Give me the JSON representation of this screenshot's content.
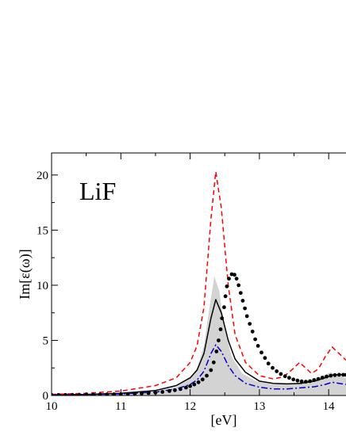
{
  "chart_data": {
    "type": "line",
    "annotation": "LiF",
    "xlabel": "[eV]",
    "ylabel": "Im[ε(ω)]",
    "xlim": [
      10,
      14.25
    ],
    "ylim": [
      0,
      22
    ],
    "xticks": [
      10,
      11,
      12,
      13,
      14
    ],
    "yticks": [
      0,
      5,
      10,
      15,
      20
    ],
    "grid": false,
    "legend": "none",
    "series": [
      {
        "style": "shaded-area",
        "color": "#d3d3d3",
        "points": [
          [
            10.0,
            0.05
          ],
          [
            10.5,
            0.1
          ],
          [
            11.0,
            0.2
          ],
          [
            11.5,
            0.4
          ],
          [
            11.8,
            0.8
          ],
          [
            12.0,
            1.6
          ],
          [
            12.1,
            2.5
          ],
          [
            12.2,
            4.5
          ],
          [
            12.28,
            8.0
          ],
          [
            12.35,
            10.8
          ],
          [
            12.42,
            9.5
          ],
          [
            12.5,
            6.0
          ],
          [
            12.6,
            3.5
          ],
          [
            12.75,
            2.0
          ],
          [
            12.95,
            1.3
          ],
          [
            13.2,
            1.0
          ],
          [
            13.5,
            1.1
          ],
          [
            13.7,
            1.3
          ],
          [
            13.85,
            1.6
          ],
          [
            13.95,
            1.9
          ],
          [
            14.03,
            2.1
          ],
          [
            14.1,
            1.9
          ],
          [
            14.2,
            1.7
          ],
          [
            14.25,
            1.6
          ]
        ]
      },
      {
        "style": "solid",
        "color": "#000000",
        "points": [
          [
            10.0,
            0.05
          ],
          [
            10.5,
            0.1
          ],
          [
            11.0,
            0.2
          ],
          [
            11.5,
            0.45
          ],
          [
            11.8,
            0.9
          ],
          [
            12.0,
            1.6
          ],
          [
            12.1,
            2.3
          ],
          [
            12.2,
            3.8
          ],
          [
            12.3,
            7.0
          ],
          [
            12.37,
            8.7
          ],
          [
            12.45,
            7.5
          ],
          [
            12.55,
            5.0
          ],
          [
            12.65,
            3.3
          ],
          [
            12.8,
            2.1
          ],
          [
            13.0,
            1.3
          ],
          [
            13.2,
            1.1
          ],
          [
            13.4,
            1.05
          ],
          [
            13.6,
            1.1
          ],
          [
            13.8,
            1.3
          ],
          [
            13.95,
            1.6
          ],
          [
            14.05,
            1.85
          ],
          [
            14.15,
            1.9
          ],
          [
            14.25,
            1.9
          ]
        ]
      },
      {
        "style": "dashed",
        "color": "#ff0000",
        "points": [
          [
            10.0,
            0.1
          ],
          [
            10.5,
            0.2
          ],
          [
            11.0,
            0.4
          ],
          [
            11.5,
            0.9
          ],
          [
            11.8,
            1.6
          ],
          [
            12.0,
            3.0
          ],
          [
            12.1,
            4.5
          ],
          [
            12.2,
            8.0
          ],
          [
            12.3,
            16.0
          ],
          [
            12.37,
            20.3
          ],
          [
            12.45,
            17.0
          ],
          [
            12.55,
            10.0
          ],
          [
            12.65,
            5.5
          ],
          [
            12.8,
            3.0
          ],
          [
            13.0,
            1.8
          ],
          [
            13.2,
            1.5
          ],
          [
            13.35,
            1.7
          ],
          [
            13.5,
            2.5
          ],
          [
            13.58,
            3.0
          ],
          [
            13.65,
            2.6
          ],
          [
            13.75,
            2.0
          ],
          [
            13.85,
            2.4
          ],
          [
            13.95,
            3.5
          ],
          [
            14.05,
            4.4
          ],
          [
            14.15,
            3.8
          ],
          [
            14.25,
            3.2
          ]
        ]
      },
      {
        "style": "dash-dot",
        "color": "#0000cc",
        "points": [
          [
            10.0,
            0.05
          ],
          [
            10.5,
            0.08
          ],
          [
            11.0,
            0.15
          ],
          [
            11.5,
            0.3
          ],
          [
            11.8,
            0.6
          ],
          [
            12.0,
            1.0
          ],
          [
            12.1,
            1.4
          ],
          [
            12.2,
            2.2
          ],
          [
            12.3,
            3.8
          ],
          [
            12.37,
            4.6
          ],
          [
            12.45,
            4.0
          ],
          [
            12.55,
            2.7
          ],
          [
            12.65,
            1.8
          ],
          [
            12.8,
            1.1
          ],
          [
            13.0,
            0.75
          ],
          [
            13.2,
            0.6
          ],
          [
            13.4,
            0.6
          ],
          [
            13.6,
            0.7
          ],
          [
            13.8,
            0.8
          ],
          [
            13.95,
            1.0
          ],
          [
            14.05,
            1.2
          ],
          [
            14.15,
            1.1
          ],
          [
            14.25,
            1.0
          ]
        ]
      },
      {
        "style": "dots",
        "color": "#000000",
        "points": [
          [
            10.0,
            0.05
          ],
          [
            10.1,
            0.05
          ],
          [
            10.2,
            0.05
          ],
          [
            10.3,
            0.06
          ],
          [
            10.4,
            0.06
          ],
          [
            10.5,
            0.07
          ],
          [
            10.6,
            0.08
          ],
          [
            10.7,
            0.09
          ],
          [
            10.8,
            0.1
          ],
          [
            10.9,
            0.11
          ],
          [
            11.0,
            0.12
          ],
          [
            11.1,
            0.14
          ],
          [
            11.2,
            0.16
          ],
          [
            11.3,
            0.19
          ],
          [
            11.4,
            0.22
          ],
          [
            11.5,
            0.26
          ],
          [
            11.6,
            0.32
          ],
          [
            11.7,
            0.4
          ],
          [
            11.78,
            0.48
          ],
          [
            11.86,
            0.58
          ],
          [
            11.94,
            0.72
          ],
          [
            12.0,
            0.85
          ],
          [
            12.06,
            1.0
          ],
          [
            12.12,
            1.2
          ],
          [
            12.18,
            1.45
          ],
          [
            12.24,
            1.8
          ],
          [
            12.3,
            2.3
          ],
          [
            12.34,
            3.0
          ],
          [
            12.38,
            4.0
          ],
          [
            12.41,
            5.0
          ],
          [
            12.44,
            6.0
          ],
          [
            12.46,
            7.0
          ],
          [
            12.49,
            8.0
          ],
          [
            12.51,
            9.0
          ],
          [
            12.53,
            9.9
          ],
          [
            12.56,
            10.6
          ],
          [
            12.6,
            11.0
          ],
          [
            12.64,
            10.95
          ],
          [
            12.67,
            10.6
          ],
          [
            12.7,
            10.0
          ],
          [
            12.73,
            9.3
          ],
          [
            12.76,
            8.6
          ],
          [
            12.79,
            7.9
          ],
          [
            12.82,
            7.2
          ],
          [
            12.86,
            6.5
          ],
          [
            12.9,
            5.8
          ],
          [
            12.94,
            5.1
          ],
          [
            12.98,
            4.5
          ],
          [
            13.03,
            3.9
          ],
          [
            13.08,
            3.4
          ],
          [
            13.13,
            2.9
          ],
          [
            13.19,
            2.5
          ],
          [
            13.25,
            2.2
          ],
          [
            13.31,
            1.95
          ],
          [
            13.37,
            1.75
          ],
          [
            13.43,
            1.6
          ],
          [
            13.49,
            1.45
          ],
          [
            13.55,
            1.35
          ],
          [
            13.61,
            1.28
          ],
          [
            13.67,
            1.25
          ],
          [
            13.73,
            1.3
          ],
          [
            13.79,
            1.4
          ],
          [
            13.85,
            1.5
          ],
          [
            13.91,
            1.62
          ],
          [
            13.97,
            1.72
          ],
          [
            14.03,
            1.8
          ],
          [
            14.09,
            1.85
          ],
          [
            14.15,
            1.88
          ],
          [
            14.21,
            1.88
          ],
          [
            14.25,
            1.87
          ]
        ]
      }
    ]
  }
}
